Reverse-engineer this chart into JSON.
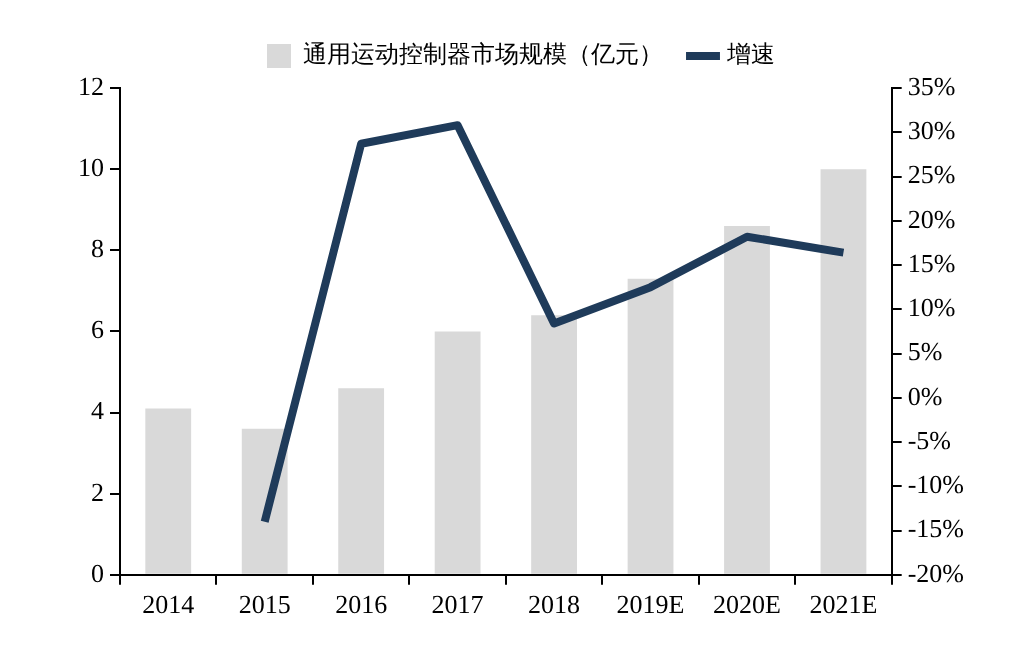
{
  "chart_data": {
    "type": "bar",
    "categories": [
      "2014",
      "2015",
      "2016",
      "2017",
      "2018",
      "2019E",
      "2020E",
      "2021E"
    ],
    "series": [
      {
        "name": "通用运动控制器市场规模（亿元）",
        "color": "#d9d9d9",
        "values": [
          4.1,
          3.6,
          4.6,
          6.0,
          6.4,
          7.3,
          8.6,
          10.0
        ]
      },
      {
        "name": "增速",
        "type": "line",
        "axis": "y2",
        "color": "#1f3b5a",
        "values": [
          null,
          -14,
          28.7,
          30.8,
          8.4,
          12.5,
          18.2,
          16.4
        ]
      }
    ],
    "ylim": [
      0,
      12
    ],
    "yticks": [
      0,
      2,
      4,
      6,
      8,
      10,
      12
    ],
    "y2lim": [
      -20,
      35
    ],
    "y2ticks": [
      {
        "value": -20,
        "label": "-20%"
      },
      {
        "value": -15,
        "label": "-15%"
      },
      {
        "value": -10,
        "label": "-10%"
      },
      {
        "value": -5,
        "label": "-5%"
      },
      {
        "value": 0,
        "label": "0%"
      },
      {
        "value": 5,
        "label": "5%"
      },
      {
        "value": 10,
        "label": "10%"
      },
      {
        "value": 15,
        "label": "15%"
      },
      {
        "value": 20,
        "label": "20%"
      },
      {
        "value": 25,
        "label": "25%"
      },
      {
        "value": 30,
        "label": "30%"
      },
      {
        "value": 35,
        "label": "35%"
      }
    ],
    "grid": false,
    "legend": "top",
    "marker": "none"
  }
}
